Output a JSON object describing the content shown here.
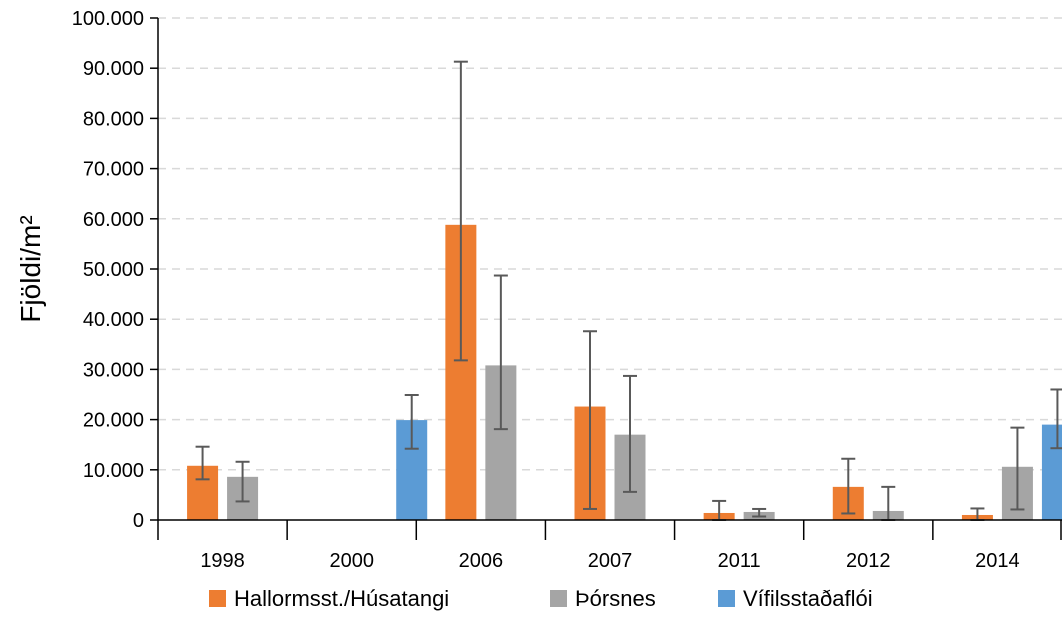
{
  "chart_data": {
    "type": "bar",
    "title": "",
    "xlabel": "",
    "ylabel": "Fjöldi/m²",
    "ylim": [
      0,
      100000
    ],
    "yticks": [
      0,
      10000,
      20000,
      30000,
      40000,
      50000,
      60000,
      70000,
      80000,
      90000,
      100000
    ],
    "ytick_labels": [
      "0",
      "10.000",
      "20.000",
      "30.000",
      "40.000",
      "50.000",
      "60.000",
      "70.000",
      "80.000",
      "90.000",
      "100.000"
    ],
    "categories": [
      "1998",
      "2000",
      "2006",
      "2007",
      "2011",
      "2012",
      "2014"
    ],
    "grid": true,
    "legend_position": "bottom",
    "series": [
      {
        "name": "Hallormsst./Húsatangi",
        "color": "#ED7D31",
        "values": [
          10800,
          null,
          58800,
          22600,
          1400,
          6600,
          1000
        ],
        "error_low": [
          8100,
          null,
          31800,
          2200,
          0,
          1300,
          0
        ],
        "error_high": [
          14600,
          null,
          91300,
          37600,
          3800,
          12200,
          2300
        ]
      },
      {
        "name": "Þórsnes",
        "color": "#A5A5A5",
        "values": [
          8600,
          null,
          30800,
          17000,
          1600,
          1800,
          10600
        ],
        "error_low": [
          3700,
          null,
          18100,
          5600,
          700,
          0,
          2100
        ],
        "error_high": [
          11600,
          null,
          48700,
          28700,
          2200,
          6600,
          18400
        ]
      },
      {
        "name": "Vífilsstaðaflói",
        "color": "#5B9BD5",
        "values": [
          null,
          19900,
          null,
          null,
          null,
          null,
          19000
        ],
        "error_low": [
          null,
          14200,
          null,
          null,
          null,
          null,
          14300
        ],
        "error_high": [
          null,
          24900,
          null,
          null,
          null,
          null,
          26000
        ]
      }
    ]
  }
}
